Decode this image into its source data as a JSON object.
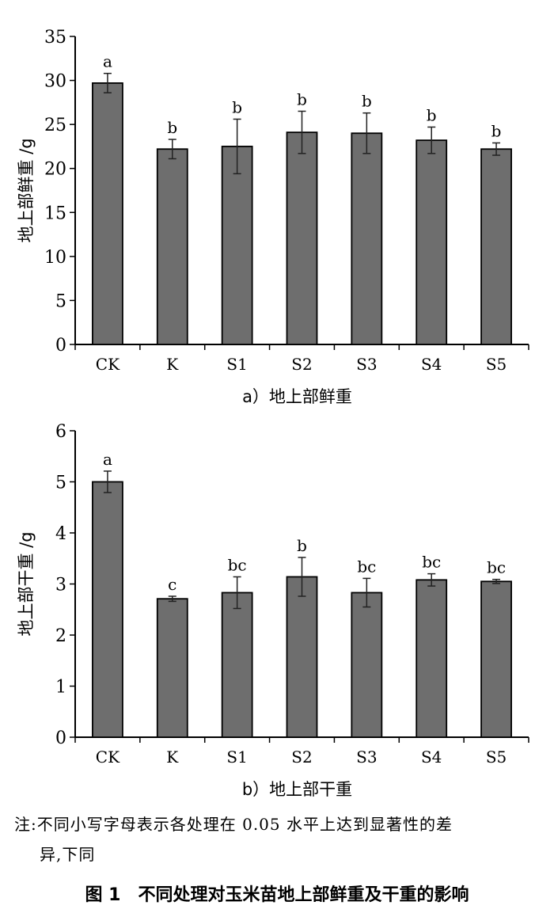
{
  "chart_data": [
    {
      "type": "bar",
      "title": "",
      "subtitle": "a）地上部鲜重",
      "ylabel": "地上部鲜重 /g",
      "xlabel": "",
      "ylim": [
        0,
        35
      ],
      "yticks": [
        0,
        5,
        10,
        15,
        20,
        25,
        30,
        35
      ],
      "categories": [
        "CK",
        "K",
        "S1",
        "S2",
        "S3",
        "S4",
        "S5"
      ],
      "values": [
        29.7,
        22.2,
        22.5,
        24.1,
        24.0,
        23.2,
        22.2
      ],
      "errors": [
        1.1,
        1.1,
        3.1,
        2.4,
        2.3,
        1.5,
        0.7
      ],
      "letters": [
        "a",
        "b",
        "b",
        "b",
        "b",
        "b",
        "b"
      ],
      "bar_color": "#6e6e6e"
    },
    {
      "type": "bar",
      "title": "",
      "subtitle": "b）地上部干重",
      "ylabel": "地上部干重 /g",
      "xlabel": "",
      "ylim": [
        0,
        6
      ],
      "yticks": [
        0,
        1,
        2,
        3,
        4,
        5,
        6
      ],
      "categories": [
        "CK",
        "K",
        "S1",
        "S2",
        "S3",
        "S4",
        "S5"
      ],
      "values": [
        5.0,
        2.71,
        2.83,
        3.14,
        2.83,
        3.08,
        3.05
      ],
      "errors": [
        0.21,
        0.05,
        0.31,
        0.38,
        0.28,
        0.12,
        0.04
      ],
      "letters": [
        "a",
        "c",
        "bc",
        "b",
        "bc",
        "bc",
        "bc"
      ],
      "bar_color": "#6e6e6e"
    }
  ],
  "note": {
    "line1": "注:不同小写字母表示各处理在 0.05 水平上达到显著性的差",
    "line2": "异,下同"
  },
  "caption": {
    "label": "图 1",
    "text": "不同处理对玉米苗地上部鲜重及干重的影响"
  }
}
